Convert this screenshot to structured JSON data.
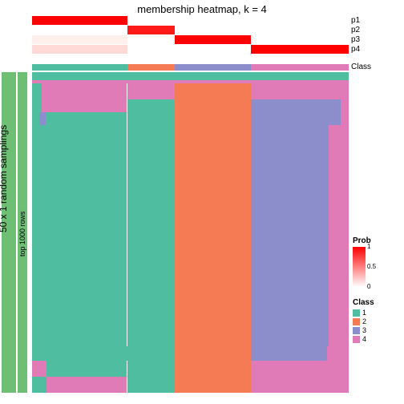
{
  "title": "membership heatmap, k = 4",
  "left_bar": {
    "color": "#6ebf74",
    "label": "50 x 1 random samplings"
  },
  "left_bar_inner": {
    "color": "#6ebf74",
    "label": "top 1000 rows"
  },
  "col_widths": [
    0.3,
    0.15,
    0.24,
    0.31
  ],
  "white": "#ffffff",
  "pink_faint": "#ffe8e8",
  "red": "#ff0000",
  "top_rows": [
    {
      "label": "p1",
      "cells": [
        "#ff0000",
        "#ffffff",
        "#ffffff",
        "#ffffff"
      ]
    },
    {
      "label": "p2",
      "cells": [
        "#ffffff",
        "#ff1a1a",
        "#ffffff",
        "#ffffff"
      ]
    },
    {
      "label": "p3",
      "cells": [
        "#fff0ee",
        "#ffffff",
        "#ff0000",
        "#ffffff"
      ]
    },
    {
      "label": "p4",
      "cells": [
        "#ffdad6",
        "#ffffff",
        "#ffffff",
        "#ff0000"
      ]
    }
  ],
  "class_row": {
    "label": "Class",
    "cells": [
      "#4fbda0",
      "#f47b54",
      "#8b8ecb",
      "#e07bb8"
    ]
  },
  "class_colors": {
    "1": "#4fbda0",
    "2": "#f47b54",
    "3": "#8b8ecb",
    "4": "#e07bb8"
  },
  "main_rows": [
    {
      "h": 0.025,
      "cells": [
        "#4fbda0",
        "#4fbda0",
        "#4fbda0",
        "#4fbda0"
      ]
    },
    {
      "h": 0.01,
      "cells": [
        "#e07bb8",
        "#e07bb8",
        "#e07bb8",
        "#e07bb8"
      ]
    },
    {
      "h": 0.05,
      "cells": [
        {
          "sub": [
            [
              "#4fbda0",
              0.1
            ],
            [
              "#e07bb8",
              0.9
            ]
          ]
        },
        "#e07bb8",
        "#f47b54",
        "#e07bb8"
      ]
    },
    {
      "h": 0.04,
      "cells": [
        {
          "sub": [
            [
              "#4fbda0",
              0.1
            ],
            [
              "#e07bb8",
              0.9
            ]
          ]
        },
        "#4fbda0",
        "#f47b54",
        {
          "sub": [
            [
              "#8b8ecb",
              0.92
            ],
            [
              "#e07bb8",
              0.08
            ]
          ]
        }
      ]
    },
    {
      "h": 0.04,
      "cells": [
        {
          "sub": [
            [
              "#4fbda0",
              0.08
            ],
            [
              "#8b8ecb",
              0.06
            ],
            [
              "#4fbda0",
              0.86
            ]
          ]
        },
        "#4fbda0",
        "#f47b54",
        {
          "sub": [
            [
              "#8b8ecb",
              0.92
            ],
            [
              "#e07bb8",
              0.08
            ]
          ]
        }
      ]
    },
    {
      "h": 0.69,
      "cells": [
        {
          "sub": [
            [
              "#4fbda0",
              0.08
            ],
            [
              "#4fbda0",
              0.92
            ]
          ]
        },
        "#4fbda0",
        "#f47b54",
        {
          "sub": [
            [
              "#8b8ecb",
              0.8
            ],
            [
              "#e07bb8",
              0.2
            ]
          ]
        }
      ]
    },
    {
      "h": 0.045,
      "cells": [
        "#4fbda0",
        "#4fbda0",
        "#f47b54",
        {
          "sub": [
            [
              "#8b8ecb",
              0.78
            ],
            [
              "#e07bb8",
              0.22
            ]
          ]
        }
      ]
    },
    {
      "h": 0.05,
      "cells": [
        {
          "sub": [
            [
              "#e07bb8",
              0.15
            ],
            [
              "#4fbda0",
              0.85
            ]
          ]
        },
        "#4fbda0",
        "#f47b54",
        "#e07bb8"
      ]
    },
    {
      "h": 0.05,
      "cells": [
        {
          "sub": [
            [
              "#4fbda0",
              0.15
            ],
            [
              "#e07bb8",
              0.85
            ]
          ]
        },
        "#4fbda0",
        "#f47b54",
        "#e07bb8"
      ]
    }
  ],
  "legend": {
    "prob_title": "Prob",
    "prob_ticks": [
      {
        "v": "1",
        "p": 0
      },
      {
        "v": "0.5",
        "p": 0.5
      },
      {
        "v": "0",
        "p": 1
      }
    ],
    "class_title": "Class",
    "class_items": [
      {
        "label": "1",
        "color": "#4fbda0"
      },
      {
        "label": "2",
        "color": "#f47b54"
      },
      {
        "label": "3",
        "color": "#8b8ecb"
      },
      {
        "label": "4",
        "color": "#e07bb8"
      }
    ]
  }
}
